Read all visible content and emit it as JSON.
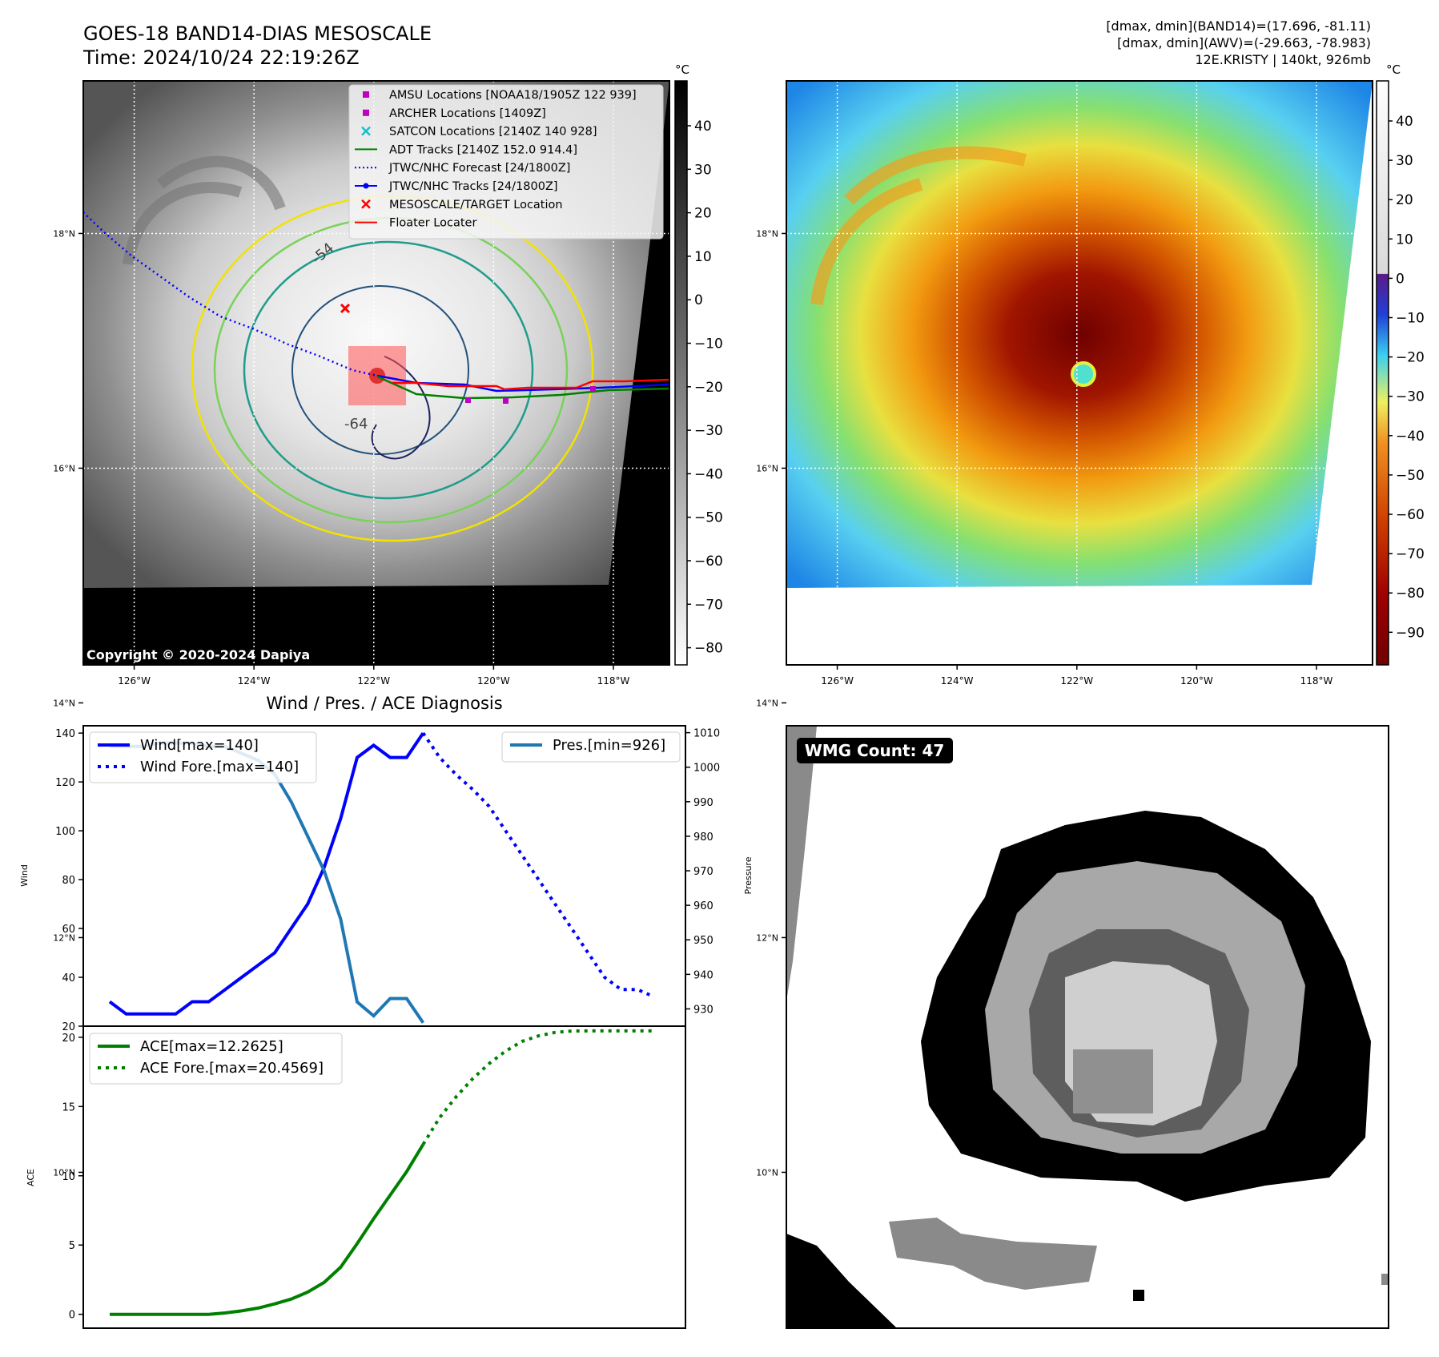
{
  "header": {
    "title": "GOES-18 BAND14-DIAS MESOSCALE",
    "time": "Time: 2024/10/24 22:19:26Z",
    "stats_line1": "[dmax, dmin](BAND14)=(17.696, -81.11)",
    "stats_line2": "[dmax, dmin](AWV)=(-29.663, -78.983)",
    "stats_line3": "12E.KRISTY | 140kt, 926mb"
  },
  "map": {
    "lat_labels": [
      "18°N",
      "16°N",
      "14°N",
      "12°N",
      "10°N"
    ],
    "lat_values": [
      18,
      16,
      14,
      12,
      10
    ],
    "lon_labels": [
      "126°W",
      "124°W",
      "122°W",
      "120°W",
      "118°W"
    ],
    "lon_values": [
      -126,
      -124,
      -122,
      -120,
      -118
    ],
    "copyright": "Copyright © 2020-2024 Dapiya",
    "contour_labels": [
      "-64",
      "-54"
    ],
    "legend": [
      {
        "label": "AMSU Locations [NOAA18/1905Z 122 939]",
        "marker": "square",
        "color": "#c000c0"
      },
      {
        "label": "ARCHER Locations [1409Z]",
        "marker": "square",
        "color": "#c000c0"
      },
      {
        "label": "SATCON Locations [2140Z 140 928]",
        "marker": "x",
        "color": "#17becf"
      },
      {
        "label": "ADT Tracks [2140Z 152.0 914.4]",
        "marker": "line",
        "color": "#008000"
      },
      {
        "label": "JTWC/NHC Forecast [24/1800Z]",
        "marker": "dotted",
        "color": "#0000ff"
      },
      {
        "label": "JTWC/NHC Tracks [24/1800Z]",
        "marker": "line-dot",
        "color": "#0000ff"
      },
      {
        "label": "MESOSCALE/TARGET Location",
        "marker": "x",
        "color": "#ff0000"
      },
      {
        "label": "Floater Locater",
        "marker": "line",
        "color": "#ff0000"
      }
    ]
  },
  "colorbar_gray": {
    "unit": "°C",
    "ticks": [
      "40",
      "30",
      "20",
      "10",
      "0",
      "−10",
      "−20",
      "−30",
      "−40",
      "−50",
      "−60",
      "−70",
      "−80"
    ],
    "values": [
      40,
      30,
      20,
      10,
      0,
      -10,
      -20,
      -30,
      -40,
      -50,
      -60,
      -70,
      -80
    ]
  },
  "colorbar_color": {
    "unit": "°C",
    "ticks": [
      "40",
      "30",
      "20",
      "10",
      "0",
      "−10",
      "−20",
      "−30",
      "−40",
      "−50",
      "−60",
      "−70",
      "−80",
      "−90"
    ],
    "values": [
      40,
      30,
      20,
      10,
      0,
      -10,
      -20,
      -30,
      -40,
      -50,
      -60,
      -70,
      -80,
      -90
    ]
  },
  "chart_data": [
    {
      "type": "line",
      "title": "Wind / Pres. / ACE Diagnosis",
      "ylabel": "Wind",
      "ylabel_right": "Pressure",
      "ylim": [
        20,
        143
      ],
      "ylim_right": [
        925,
        1012
      ],
      "yticks": [
        20,
        40,
        60,
        80,
        100,
        120,
        140
      ],
      "yticks_right": [
        930,
        940,
        950,
        960,
        970,
        980,
        990,
        1000,
        1010
      ],
      "x": [
        0,
        1,
        2,
        3,
        4,
        5,
        6,
        7,
        8,
        9,
        10,
        11,
        12,
        13,
        14,
        15,
        16,
        17,
        18,
        19,
        20,
        21,
        22,
        23,
        24,
        25,
        26,
        27,
        28,
        29,
        30,
        31,
        32,
        33
      ],
      "series": [
        {
          "name": "Wind[max=140]",
          "color": "#0000ff",
          "style": "solid",
          "x": [
            0,
            1,
            2,
            3,
            4,
            5,
            6,
            7,
            8,
            9,
            10,
            11,
            12,
            13,
            14,
            15,
            16,
            17,
            18,
            19
          ],
          "values": [
            30,
            25,
            25,
            25,
            25,
            30,
            30,
            35,
            40,
            45,
            50,
            60,
            70,
            85,
            105,
            130,
            135,
            130,
            130,
            140
          ]
        },
        {
          "name": "Wind Fore.[max=140]",
          "color": "#0000ff",
          "style": "dotted",
          "x": [
            19,
            20,
            21,
            22,
            23,
            24,
            25,
            26,
            27,
            28,
            29,
            30,
            31,
            32,
            33
          ],
          "values": [
            140,
            130,
            123,
            117,
            110,
            100,
            90,
            80,
            70,
            60,
            50,
            40,
            35,
            35,
            32
          ]
        },
        {
          "name": "Pres.[min=926]",
          "color": "#1f77b4",
          "style": "solid",
          "axis": "right",
          "x": [
            0,
            1,
            2,
            3,
            4,
            5,
            6,
            7,
            8,
            9,
            10,
            11,
            12,
            13,
            14,
            15,
            16,
            17,
            18,
            19
          ],
          "values": [
            1006,
            1006,
            1006,
            1007,
            1007,
            1007,
            1006,
            1006,
            1004,
            1002,
            998,
            990,
            980,
            970,
            956,
            932,
            928,
            933,
            933,
            926
          ]
        }
      ]
    },
    {
      "type": "line",
      "ylabel": "ACE",
      "ylim": [
        -1,
        20.8
      ],
      "yticks": [
        0,
        5,
        10,
        15,
        20
      ],
      "series": [
        {
          "name": "ACE[max=12.2625]",
          "color": "#008000",
          "style": "solid",
          "x": [
            0,
            1,
            2,
            3,
            4,
            5,
            6,
            7,
            8,
            9,
            10,
            11,
            12,
            13,
            14,
            15,
            16,
            17,
            18,
            19
          ],
          "values": [
            0,
            0,
            0,
            0,
            0,
            0,
            0,
            0.1,
            0.25,
            0.45,
            0.75,
            1.1,
            1.6,
            2.3,
            3.4,
            5.1,
            6.9,
            8.6,
            10.3,
            12.2625
          ]
        },
        {
          "name": "ACE Fore.[max=20.4569]",
          "color": "#008000",
          "style": "dotted",
          "x": [
            19,
            20,
            21,
            22,
            23,
            24,
            25,
            26,
            27,
            28,
            29,
            30,
            31,
            32,
            33
          ],
          "values": [
            12.2625,
            14.2,
            15.7,
            17.0,
            18.1,
            19.0,
            19.7,
            20.1,
            20.35,
            20.45,
            20.4569,
            20.4569,
            20.4569,
            20.4569,
            20.4569
          ]
        }
      ]
    }
  ],
  "wmg": {
    "label": "WMG Count: 47"
  }
}
